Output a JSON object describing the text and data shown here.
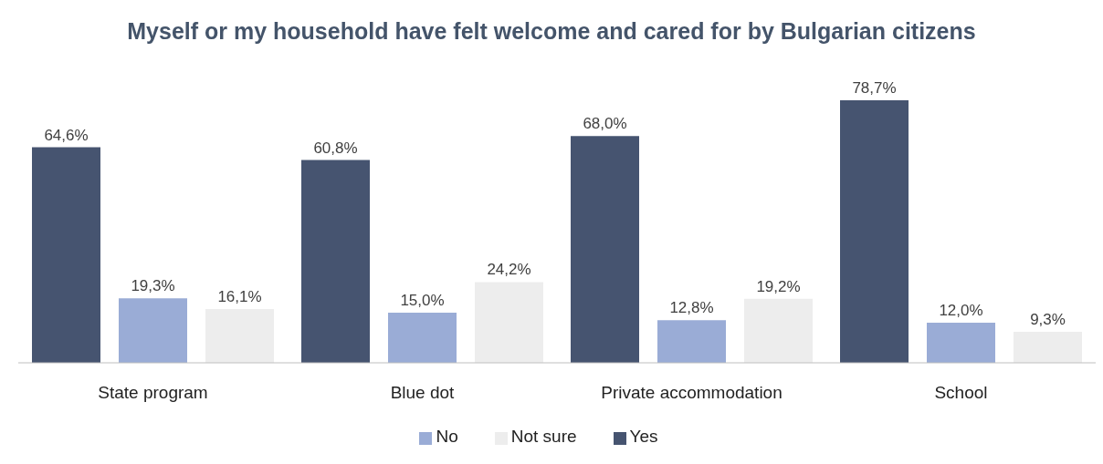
{
  "chart_data": {
    "type": "bar",
    "title": "Myself or my household have felt welcome and cared for by Bulgarian citizens",
    "categories": [
      "State program",
      "Blue dot",
      "Private accommodation",
      "School"
    ],
    "series": [
      {
        "name": "Yes",
        "color": "#465470",
        "values": [
          64.6,
          60.8,
          68.0,
          78.7
        ],
        "value_labels": [
          "64,6%",
          "60,8%",
          "68,0%",
          "78,7%"
        ]
      },
      {
        "name": "No",
        "color": "#9aacd6",
        "values": [
          19.3,
          15.0,
          12.8,
          12.0
        ],
        "value_labels": [
          "19,3%",
          "15,0%",
          "12,8%",
          "12,0%"
        ]
      },
      {
        "name": "Not sure",
        "color": "#ededed",
        "values": [
          16.1,
          24.2,
          19.2,
          9.3
        ],
        "value_labels": [
          "16,1%",
          "24,2%",
          "19,2%",
          "9,3%"
        ]
      }
    ],
    "legend": "bottom",
    "grid": false
  }
}
